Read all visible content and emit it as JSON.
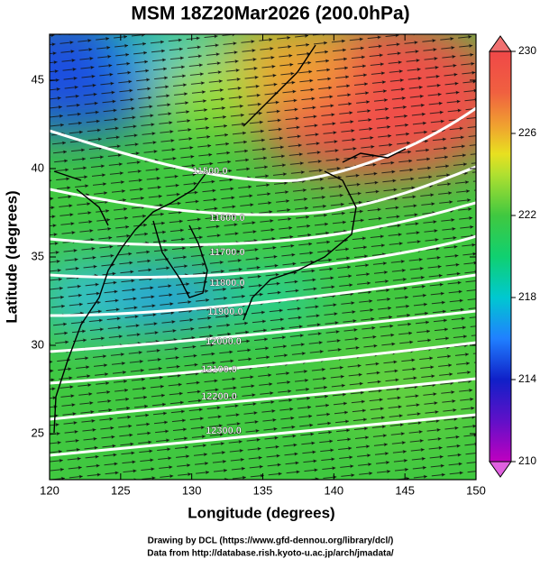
{
  "chart_data": {
    "type": "map",
    "title": "MSM 18Z20Mar2026 (200.0hPa)",
    "x_label": "Longitude (degrees)",
    "y_label": "Latitude  (degrees)",
    "xlim": [
      120,
      150
    ],
    "xticks": [
      120,
      125,
      130,
      135,
      140,
      145,
      150
    ],
    "ylim": [
      22.4,
      47.6
    ],
    "yticks": [
      25,
      30,
      35,
      40,
      45
    ],
    "colorbar": {
      "lim": [
        210,
        230
      ],
      "ticks": [
        210,
        214,
        218,
        222,
        226,
        230
      ]
    },
    "contour_labels": [
      "11500.0",
      "11600.0",
      "11700.0",
      "11800.0",
      "11900.0",
      "12000.0",
      "12100.0",
      "12200.0",
      "12300.0"
    ],
    "footer": [
      "Drawing by DCL (https://www.gfd-dennou.org/library/dcl/)",
      "Data from http://database.rish.kyoto-u.ac.jp/arch/jmadata/"
    ]
  }
}
